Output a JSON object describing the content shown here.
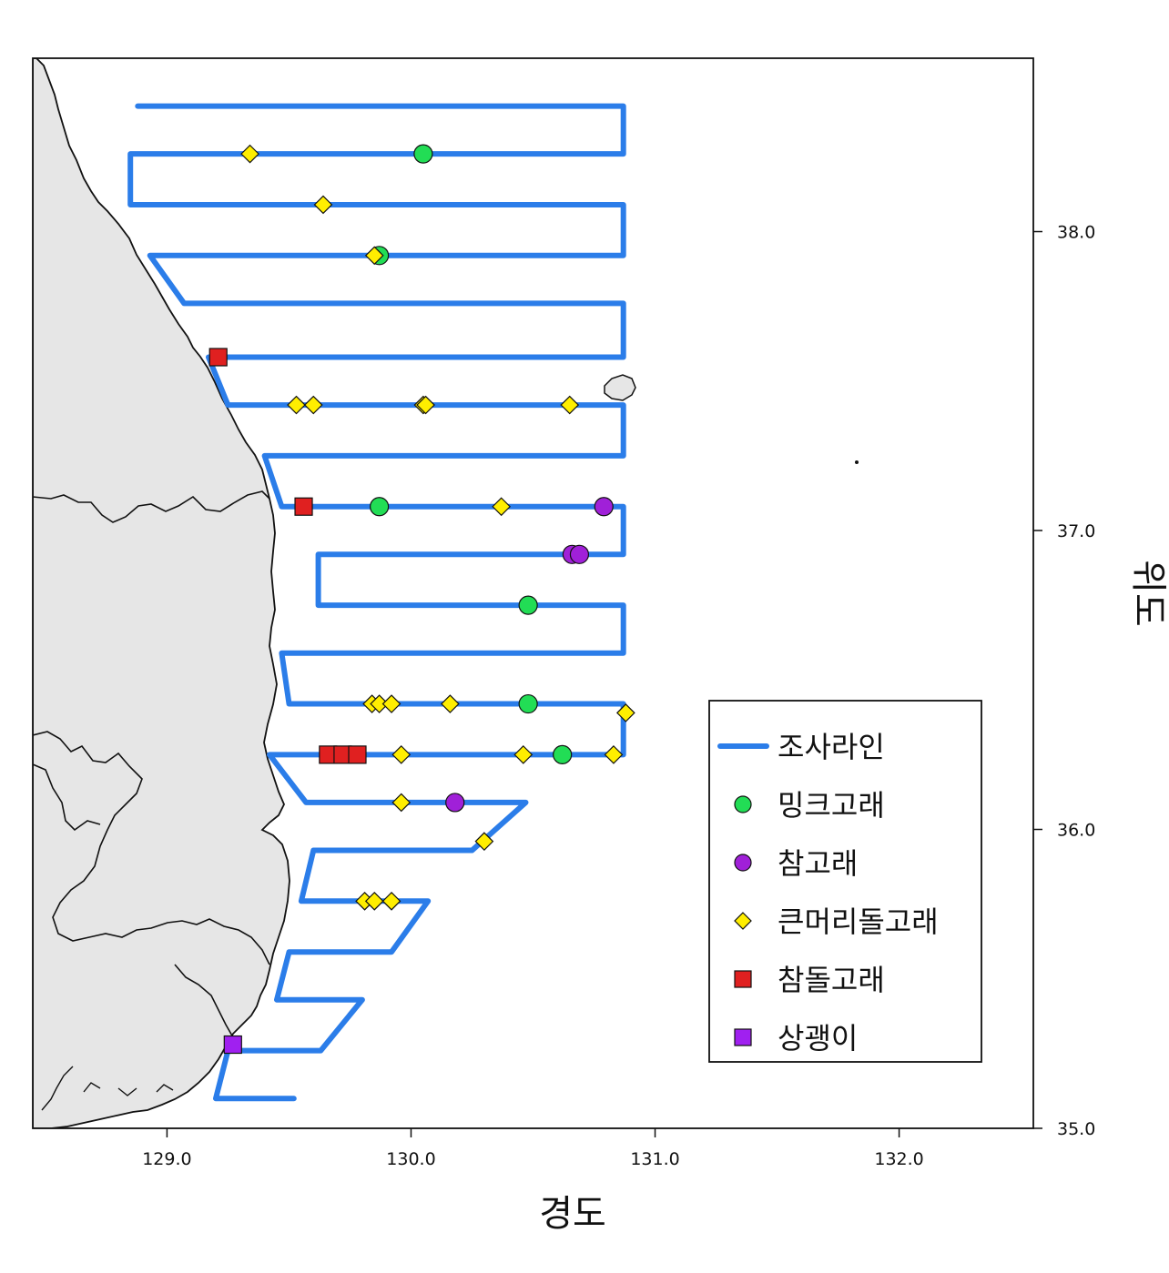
{
  "map": {
    "xlabel": "경도",
    "ylabel": "위도",
    "x_range": [
      128.45,
      132.55
    ],
    "y_range": [
      35.0,
      38.58
    ],
    "x_ticks": [
      "129.0",
      "130.0",
      "131.0",
      "132.0"
    ],
    "y_ticks": [
      "35.0",
      "36.0",
      "37.0",
      "38.0"
    ],
    "x_tick_values": [
      129.0,
      130.0,
      131.0,
      132.0
    ],
    "y_tick_values": [
      35.0,
      36.0,
      37.0,
      38.0
    ],
    "colors": {
      "survey_line": "#2b7de9",
      "land": "#e6e6e6",
      "minke": "#22dd55",
      "fin": "#a020d8",
      "harbour_porpoise": "#ffee00",
      "dolphin": "#e02020",
      "humpback": "#a020f0"
    },
    "legend": {
      "items": [
        {
          "label": "조사라인",
          "symbol": "line",
          "color": "#2b7de9"
        },
        {
          "label": "밍크고래",
          "symbol": "circle",
          "color": "#22dd55"
        },
        {
          "label": "참고래",
          "symbol": "circle",
          "color": "#a020d8"
        },
        {
          "label": "큰머리돌고래",
          "symbol": "diamond",
          "color": "#ffee00"
        },
        {
          "label": "참돌고래",
          "symbol": "square",
          "color": "#e02020"
        },
        {
          "label": "상괭이",
          "symbol": "square",
          "color": "#a020f0"
        }
      ]
    },
    "survey_track": [
      [
        128.88,
        38.42
      ],
      [
        130.87,
        38.42
      ],
      [
        130.87,
        38.26
      ],
      [
        128.85,
        38.26
      ],
      [
        128.85,
        38.09
      ],
      [
        130.87,
        38.09
      ],
      [
        130.87,
        37.92
      ],
      [
        128.93,
        37.92
      ],
      [
        129.07,
        37.76
      ],
      [
        130.87,
        37.76
      ],
      [
        130.87,
        37.58
      ],
      [
        129.17,
        37.58
      ],
      [
        129.25,
        37.42
      ],
      [
        130.87,
        37.42
      ],
      [
        130.87,
        37.25
      ],
      [
        129.4,
        37.25
      ],
      [
        129.47,
        37.08
      ],
      [
        130.87,
        37.08
      ],
      [
        130.87,
        36.92
      ],
      [
        129.62,
        36.92
      ],
      [
        129.62,
        36.75
      ],
      [
        130.87,
        36.75
      ],
      [
        130.87,
        36.59
      ],
      [
        129.47,
        36.59
      ],
      [
        129.5,
        36.42
      ],
      [
        130.87,
        36.42
      ],
      [
        130.87,
        36.25
      ],
      [
        129.42,
        36.25
      ],
      [
        129.57,
        36.09
      ],
      [
        130.47,
        36.09
      ],
      [
        130.25,
        35.93
      ],
      [
        129.6,
        35.93
      ],
      [
        129.55,
        35.76
      ],
      [
        130.07,
        35.76
      ],
      [
        129.92,
        35.59
      ],
      [
        129.5,
        35.59
      ],
      [
        129.45,
        35.43
      ],
      [
        129.8,
        35.43
      ],
      [
        129.63,
        35.26
      ],
      [
        129.25,
        35.26
      ],
      [
        129.2,
        35.1
      ],
      [
        129.52,
        35.1
      ]
    ],
    "sightings": {
      "minke": [
        [
          130.05,
          38.26
        ],
        [
          129.87,
          37.92
        ],
        [
          129.87,
          37.08
        ],
        [
          130.48,
          36.75
        ],
        [
          130.48,
          36.42
        ],
        [
          130.62,
          36.25
        ]
      ],
      "fin": [
        [
          130.79,
          37.08
        ],
        [
          130.66,
          36.92
        ],
        [
          130.69,
          36.92
        ],
        [
          130.18,
          36.09
        ]
      ],
      "harbour_porpoise": [
        [
          129.34,
          38.26
        ],
        [
          129.64,
          38.09
        ],
        [
          129.85,
          37.92
        ],
        [
          129.53,
          37.42
        ],
        [
          129.6,
          37.42
        ],
        [
          130.05,
          37.42
        ],
        [
          130.06,
          37.42
        ],
        [
          130.65,
          37.42
        ],
        [
          130.37,
          37.08
        ],
        [
          129.84,
          36.42
        ],
        [
          129.87,
          36.42
        ],
        [
          129.92,
          36.42
        ],
        [
          130.16,
          36.42
        ],
        [
          130.88,
          36.39
        ],
        [
          129.96,
          36.25
        ],
        [
          130.46,
          36.25
        ],
        [
          130.83,
          36.25
        ],
        [
          129.96,
          36.09
        ],
        [
          130.3,
          35.96
        ],
        [
          129.81,
          35.76
        ],
        [
          129.85,
          35.76
        ],
        [
          129.92,
          35.76
        ]
      ],
      "dolphin": [
        [
          129.21,
          37.58
        ],
        [
          129.56,
          37.08
        ],
        [
          129.66,
          36.25
        ],
        [
          129.72,
          36.25
        ],
        [
          129.78,
          36.25
        ]
      ],
      "humpback": [
        [
          129.27,
          35.28
        ]
      ]
    }
  }
}
